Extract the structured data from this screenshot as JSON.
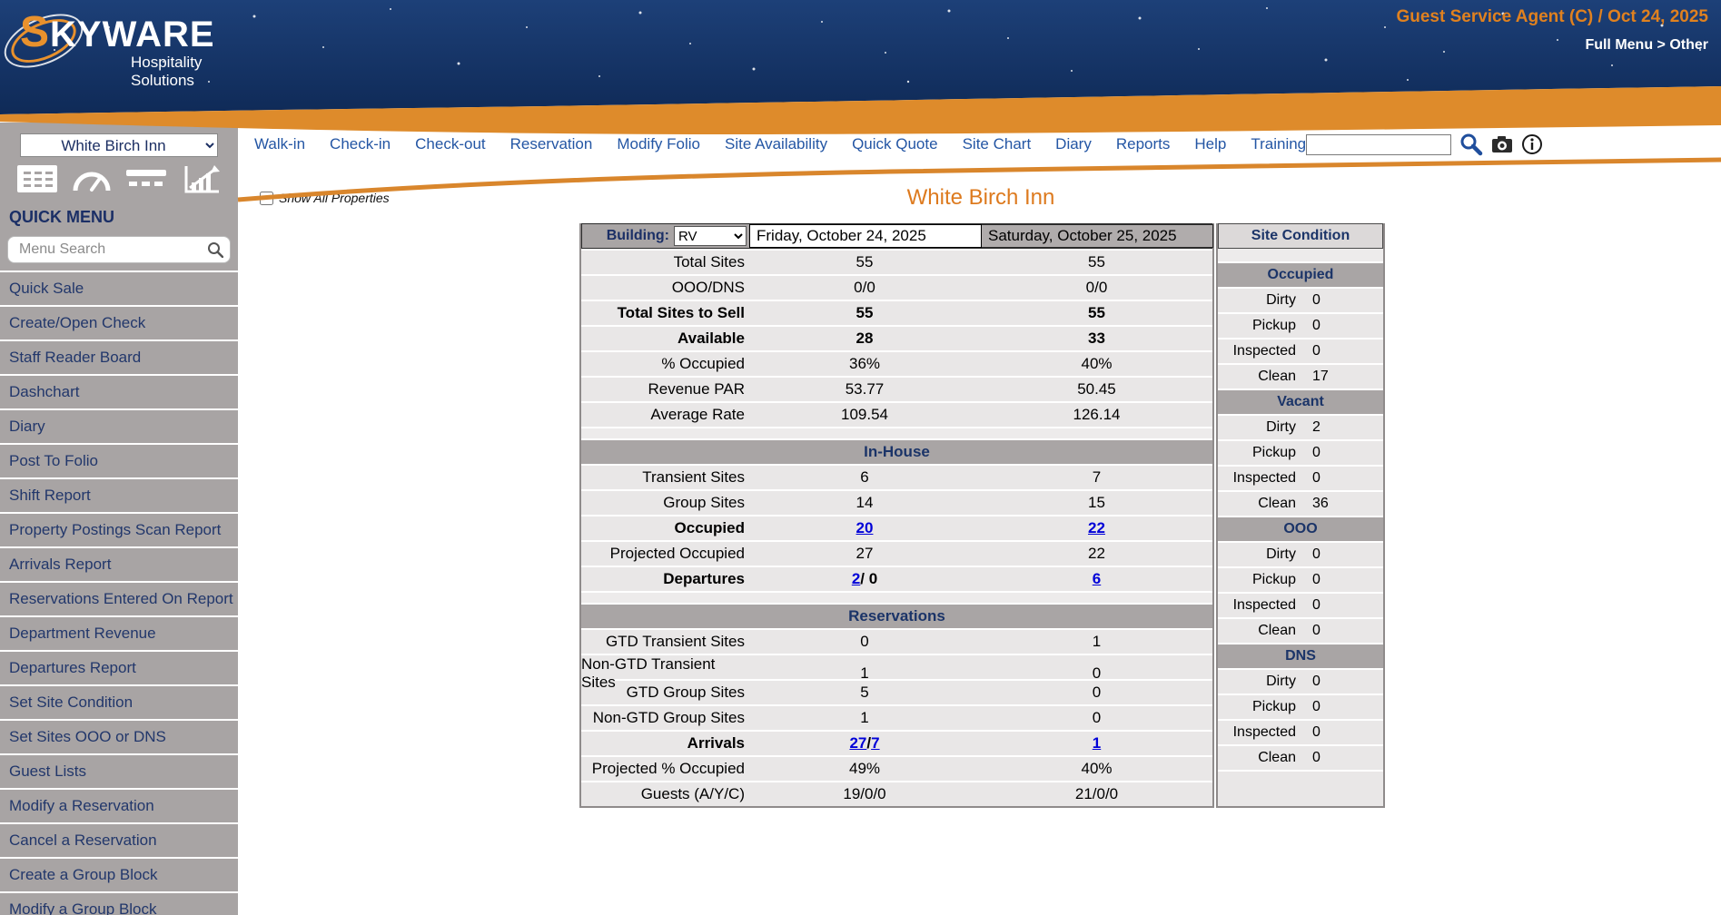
{
  "header": {
    "logo": {
      "brand_initial": "S",
      "brand_rest": "KYWARE",
      "tagline": "Hospitality Solutions"
    },
    "user_info": "Guest Service Agent (C) / Oct 24, 2025",
    "menu_path": "Full Menu > Other"
  },
  "colors": {
    "accent_orange": "#de8b2b",
    "title_orange": "#dd7a1e",
    "navy": "#1b3468",
    "link_blue": "#0000d8",
    "sidebar_gray": "#a8a4a4",
    "row_gray": "#e9e7e7",
    "section_header_gray": "#a9a5a5"
  },
  "sidebar": {
    "property_selector": "White Birch Inn",
    "icons": [
      "grid-table-icon",
      "gauge-icon",
      "list-rows-icon",
      "chart-icon"
    ],
    "quick_menu_title": "QUICK MENU",
    "search_placeholder": "Menu Search",
    "search_icon": "search-icon",
    "items": [
      "Quick Sale",
      "Create/Open Check",
      "Staff Reader Board",
      "Dashchart",
      "Diary",
      "Post To Folio",
      "Shift Report",
      "Property Postings Scan Report",
      "Arrivals Report",
      "Reservations Entered On Report",
      "Department Revenue",
      "Departures Report",
      "Set Site Condition",
      "Set Sites OOO or DNS",
      "Guest Lists",
      "Modify a Reservation",
      "Cancel a Reservation",
      "Create a Group Block",
      "Modify a Group Block"
    ]
  },
  "nav": {
    "links": [
      "Walk-in",
      "Check-in",
      "Check-out",
      "Reservation",
      "Modify Folio",
      "Site Availability",
      "Quick Quote",
      "Site Chart",
      "Diary",
      "Reports",
      "Help",
      "Training"
    ],
    "search_value": "",
    "icons": [
      "search-icon",
      "camera-icon",
      "info-icon"
    ]
  },
  "main": {
    "show_all_properties_label": "Show All Properties",
    "title": "White Birch Inn",
    "building_label": "Building:",
    "building_value": "RV",
    "dates": [
      "Friday, October 24, 2025",
      "Saturday, October 25, 2025"
    ],
    "availability": {
      "sections": [
        {
          "header": null,
          "rows": [
            {
              "label": "Total Sites",
              "values": [
                "55",
                "55"
              ]
            },
            {
              "label": "OOO/DNS",
              "values": [
                "0/0",
                "0/0"
              ]
            },
            {
              "label": "Total Sites to Sell",
              "bold": true,
              "values": [
                "55",
                "55"
              ]
            },
            {
              "label": "Available",
              "bold": true,
              "values": [
                "28",
                "33"
              ]
            },
            {
              "label": "% Occupied",
              "values": [
                "36%",
                "40%"
              ]
            },
            {
              "label": "Revenue PAR",
              "values": [
                "53.77",
                "50.45"
              ]
            },
            {
              "label": "Average Rate",
              "values": [
                "109.54",
                "126.14"
              ]
            }
          ]
        },
        {
          "header": "In-House",
          "rows": [
            {
              "label": "Transient Sites",
              "values": [
                "6",
                "7"
              ]
            },
            {
              "label": "Group Sites",
              "values": [
                "14",
                "15"
              ]
            },
            {
              "label": "Occupied",
              "bold": true,
              "values": [
                [
                  {
                    "t": "20",
                    "link": true
                  }
                ],
                [
                  {
                    "t": "22",
                    "link": true
                  }
                ]
              ]
            },
            {
              "label": "Projected Occupied",
              "values": [
                "27",
                "22"
              ]
            },
            {
              "label": "Departures",
              "bold": true,
              "values": [
                [
                  {
                    "t": "2",
                    "link": true
                  },
                  {
                    "t": " / 0"
                  }
                ],
                [
                  {
                    "t": "6",
                    "link": true
                  }
                ]
              ]
            }
          ]
        },
        {
          "header": "Reservations",
          "rows": [
            {
              "label": "GTD Transient Sites",
              "values": [
                "0",
                "1"
              ]
            },
            {
              "label": "Non-GTD Transient Sites",
              "values": [
                "1",
                "0"
              ]
            },
            {
              "label": "GTD Group Sites",
              "values": [
                "5",
                "0"
              ]
            },
            {
              "label": "Non-GTD Group Sites",
              "values": [
                "1",
                "0"
              ]
            },
            {
              "label": "Arrivals",
              "bold": true,
              "values": [
                [
                  {
                    "t": "27",
                    "link": true
                  },
                  {
                    "t": " / "
                  },
                  {
                    "t": "7",
                    "link": true
                  }
                ],
                [
                  {
                    "t": "1",
                    "link": true
                  }
                ]
              ]
            },
            {
              "label": "Projected % Occupied",
              "values": [
                "49%",
                "40%"
              ]
            },
            {
              "label": "Guests (A/Y/C)",
              "values": [
                "19/0/0",
                "21/0/0"
              ]
            }
          ]
        }
      ]
    },
    "site_condition": {
      "title": "Site Condition",
      "groups": [
        {
          "name": "Occupied",
          "rows": [
            [
              "Dirty",
              "0"
            ],
            [
              "Pickup",
              "0"
            ],
            [
              "Inspected",
              "0"
            ],
            [
              "Clean",
              "17"
            ]
          ]
        },
        {
          "name": "Vacant",
          "rows": [
            [
              "Dirty",
              "2"
            ],
            [
              "Pickup",
              "0"
            ],
            [
              "Inspected",
              "0"
            ],
            [
              "Clean",
              "36"
            ]
          ]
        },
        {
          "name": "OOO",
          "rows": [
            [
              "Dirty",
              "0"
            ],
            [
              "Pickup",
              "0"
            ],
            [
              "Inspected",
              "0"
            ],
            [
              "Clean",
              "0"
            ]
          ]
        },
        {
          "name": "DNS",
          "rows": [
            [
              "Dirty",
              "0"
            ],
            [
              "Pickup",
              "0"
            ],
            [
              "Inspected",
              "0"
            ],
            [
              "Clean",
              "0"
            ]
          ]
        }
      ]
    }
  }
}
